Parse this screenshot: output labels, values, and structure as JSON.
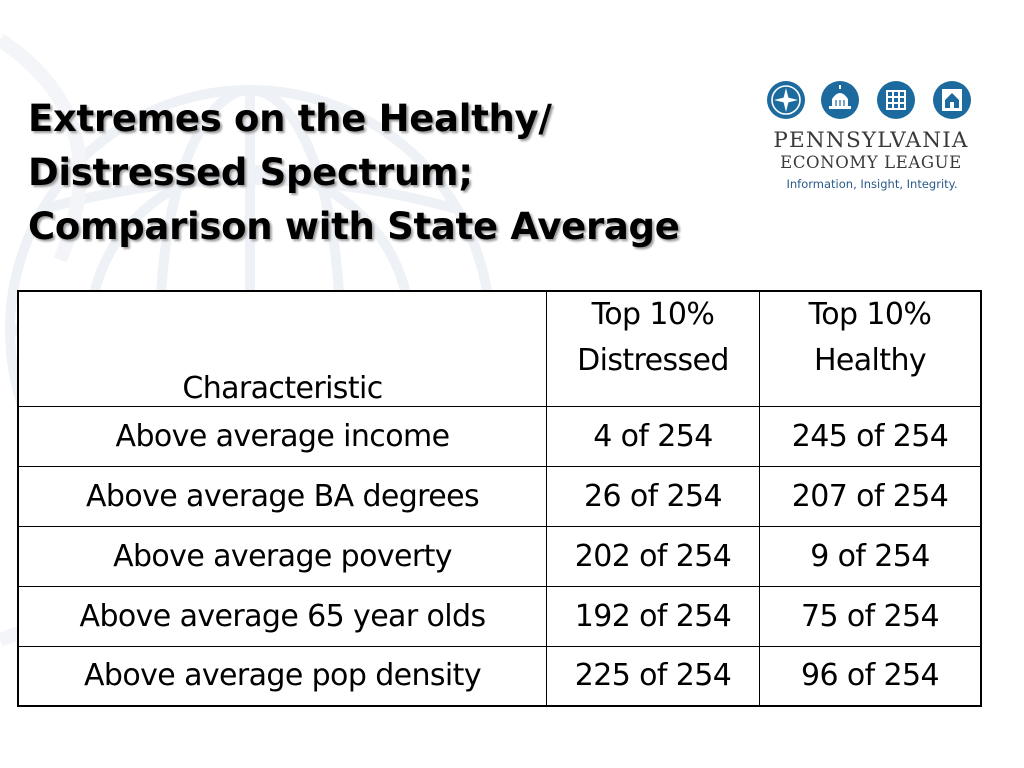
{
  "slide": {
    "title_lines": [
      "Extremes on the Healthy/",
      "Distressed Spectrum;",
      "Comparison with State Average"
    ]
  },
  "logo": {
    "name": "PENNSYLVANIA",
    "subname": "ECONOMY LEAGUE",
    "tagline": "Information, Insight, Integrity.",
    "icons": [
      "compass-icon",
      "capitol-dome-icon",
      "building-grid-icon",
      "house-chart-icon"
    ],
    "color": "#1c6a9e"
  },
  "table": {
    "headers": {
      "characteristic": "Characteristic",
      "distressed_line1": "Top 10%",
      "distressed_line2": "Distressed",
      "healthy_line1": "Top 10%",
      "healthy_line2": "Healthy"
    },
    "rows": [
      {
        "characteristic": "Above average income",
        "distressed": "4 of 254",
        "healthy": "245 of 254"
      },
      {
        "characteristic": "Above average BA degrees",
        "distressed": "26 of 254",
        "healthy": "207 of 254"
      },
      {
        "characteristic": "Above average poverty",
        "distressed": "202 of 254",
        "healthy": "9 of 254"
      },
      {
        "characteristic": "Above average 65 year olds",
        "distressed": "192 of 254",
        "healthy": "75 of 254"
      },
      {
        "characteristic": "Above average pop density",
        "distressed": "225 of 254",
        "healthy": "96 of 254"
      }
    ]
  }
}
